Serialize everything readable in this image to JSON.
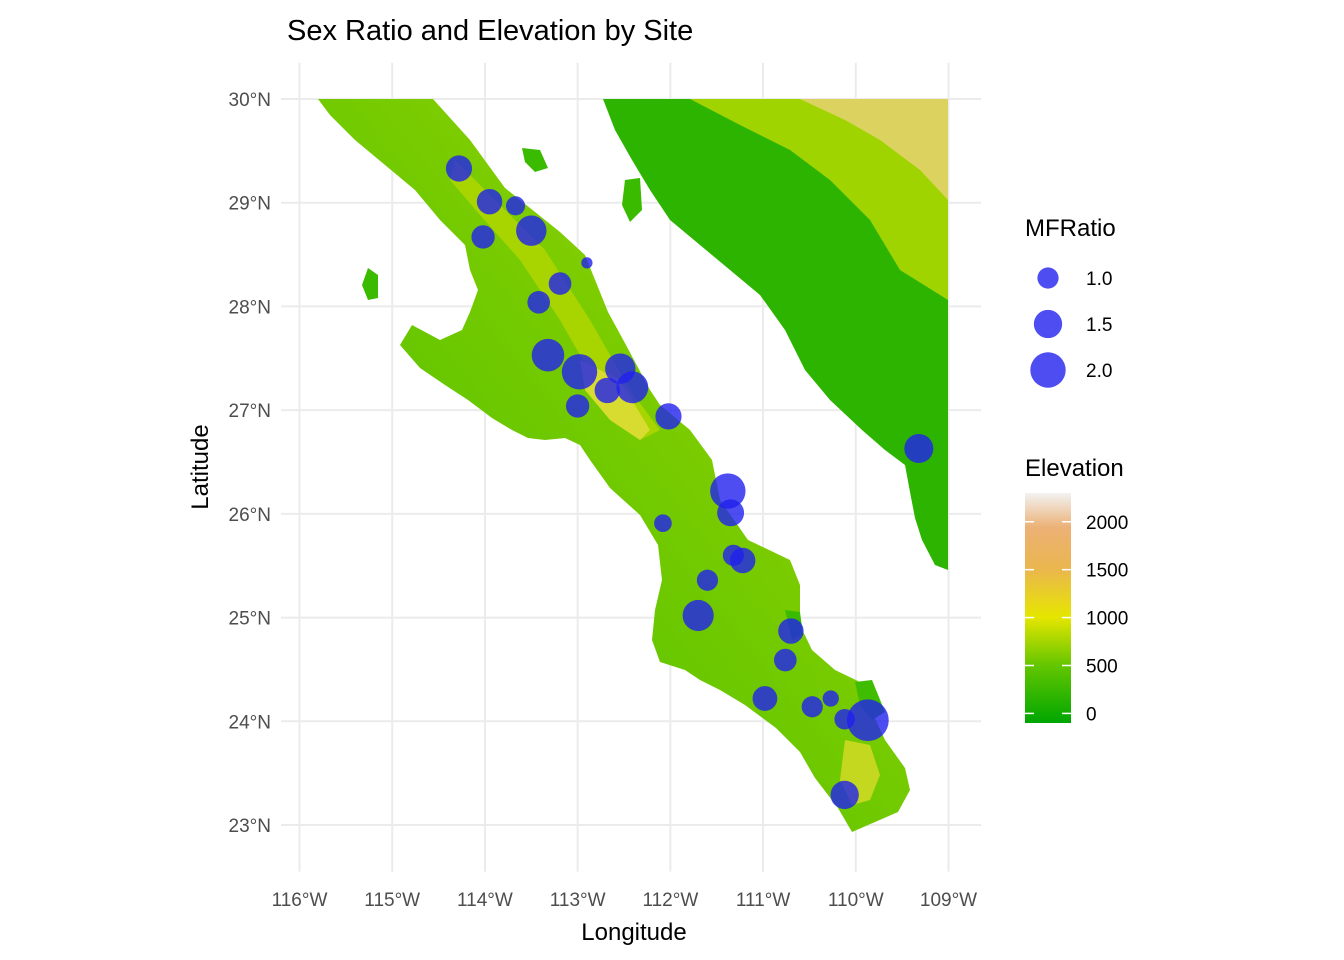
{
  "chart_data": {
    "type": "scatter",
    "title": "Sex Ratio and Elevation by Site",
    "xlabel": "Longitude",
    "ylabel": "Latitude",
    "xlim": [
      -116.2,
      -108.65
    ],
    "ylim": [
      22.55,
      30.35
    ],
    "x_ticks": [
      {
        "value": -116,
        "label": "116°W"
      },
      {
        "value": -115,
        "label": "115°W"
      },
      {
        "value": -114,
        "label": "114°W"
      },
      {
        "value": -113,
        "label": "113°W"
      },
      {
        "value": -112,
        "label": "112°W"
      },
      {
        "value": -111,
        "label": "111°W"
      },
      {
        "value": -110,
        "label": "110°W"
      },
      {
        "value": -109,
        "label": "109°W"
      }
    ],
    "y_ticks": [
      {
        "value": 30,
        "label": "30°N"
      },
      {
        "value": 29,
        "label": "29°N"
      },
      {
        "value": 28,
        "label": "28°N"
      },
      {
        "value": 27,
        "label": "27°N"
      },
      {
        "value": 26,
        "label": "26°N"
      },
      {
        "value": 25,
        "label": "25°N"
      },
      {
        "value": 24,
        "label": "24°N"
      },
      {
        "value": 23,
        "label": "23°N"
      }
    ],
    "grid": true,
    "point_color": "#2020ee",
    "points": [
      {
        "lon": -114.28,
        "lat": 29.33,
        "mfratio": 1.35
      },
      {
        "lon": -113.95,
        "lat": 29.01,
        "mfratio": 1.3
      },
      {
        "lon": -113.67,
        "lat": 28.97,
        "mfratio": 0.85
      },
      {
        "lon": -114.02,
        "lat": 28.67,
        "mfratio": 1.15
      },
      {
        "lon": -113.5,
        "lat": 28.73,
        "mfratio": 1.65
      },
      {
        "lon": -112.9,
        "lat": 28.42,
        "mfratio": 0.3
      },
      {
        "lon": -113.19,
        "lat": 28.22,
        "mfratio": 1.1
      },
      {
        "lon": -113.42,
        "lat": 28.04,
        "mfratio": 1.1
      },
      {
        "lon": -113.32,
        "lat": 27.53,
        "mfratio": 1.8
      },
      {
        "lon": -112.98,
        "lat": 27.37,
        "mfratio": 2.0
      },
      {
        "lon": -112.54,
        "lat": 27.4,
        "mfratio": 1.65
      },
      {
        "lon": -112.41,
        "lat": 27.22,
        "mfratio": 1.75
      },
      {
        "lon": -112.68,
        "lat": 27.19,
        "mfratio": 1.3
      },
      {
        "lon": -113.0,
        "lat": 27.04,
        "mfratio": 1.15
      },
      {
        "lon": -112.02,
        "lat": 26.94,
        "mfratio": 1.35
      },
      {
        "lon": -109.32,
        "lat": 26.63,
        "mfratio": 1.55
      },
      {
        "lon": -111.38,
        "lat": 26.22,
        "mfratio": 2.0
      },
      {
        "lon": -111.35,
        "lat": 26.01,
        "mfratio": 1.4
      },
      {
        "lon": -112.08,
        "lat": 25.91,
        "mfratio": 0.75
      },
      {
        "lon": -111.32,
        "lat": 25.6,
        "mfratio": 1.0
      },
      {
        "lon": -111.22,
        "lat": 25.55,
        "mfratio": 1.3
      },
      {
        "lon": -111.6,
        "lat": 25.36,
        "mfratio": 1.0
      },
      {
        "lon": -111.7,
        "lat": 25.02,
        "mfratio": 1.7
      },
      {
        "lon": -110.7,
        "lat": 24.87,
        "mfratio": 1.3
      },
      {
        "lon": -110.76,
        "lat": 24.59,
        "mfratio": 1.1
      },
      {
        "lon": -110.27,
        "lat": 24.22,
        "mfratio": 0.65
      },
      {
        "lon": -110.98,
        "lat": 24.22,
        "mfratio": 1.25
      },
      {
        "lon": -110.47,
        "lat": 24.14,
        "mfratio": 1.0
      },
      {
        "lon": -110.12,
        "lat": 24.02,
        "mfratio": 0.95
      },
      {
        "lon": -109.87,
        "lat": 24.01,
        "mfratio": 2.45
      },
      {
        "lon": -110.12,
        "lat": 23.29,
        "mfratio": 1.5
      }
    ],
    "size_legend": {
      "title": "MFRatio",
      "entries": [
        {
          "value": 1.0,
          "label": "1.0"
        },
        {
          "value": 1.5,
          "label": "1.5"
        },
        {
          "value": 2.0,
          "label": "2.0"
        }
      ]
    },
    "color_legend": {
      "title": "Elevation",
      "range": [
        -100,
        2300
      ],
      "ticks": [
        {
          "value": 2000,
          "label": "2000"
        },
        {
          "value": 1500,
          "label": "1500"
        },
        {
          "value": 1000,
          "label": "1000"
        },
        {
          "value": 500,
          "label": "500"
        },
        {
          "value": 0,
          "label": "0"
        }
      ],
      "colors": [
        "#00a600",
        "#63c600",
        "#e6e600",
        "#eab64e",
        "#ecb176",
        "#f2f2f2"
      ]
    }
  }
}
